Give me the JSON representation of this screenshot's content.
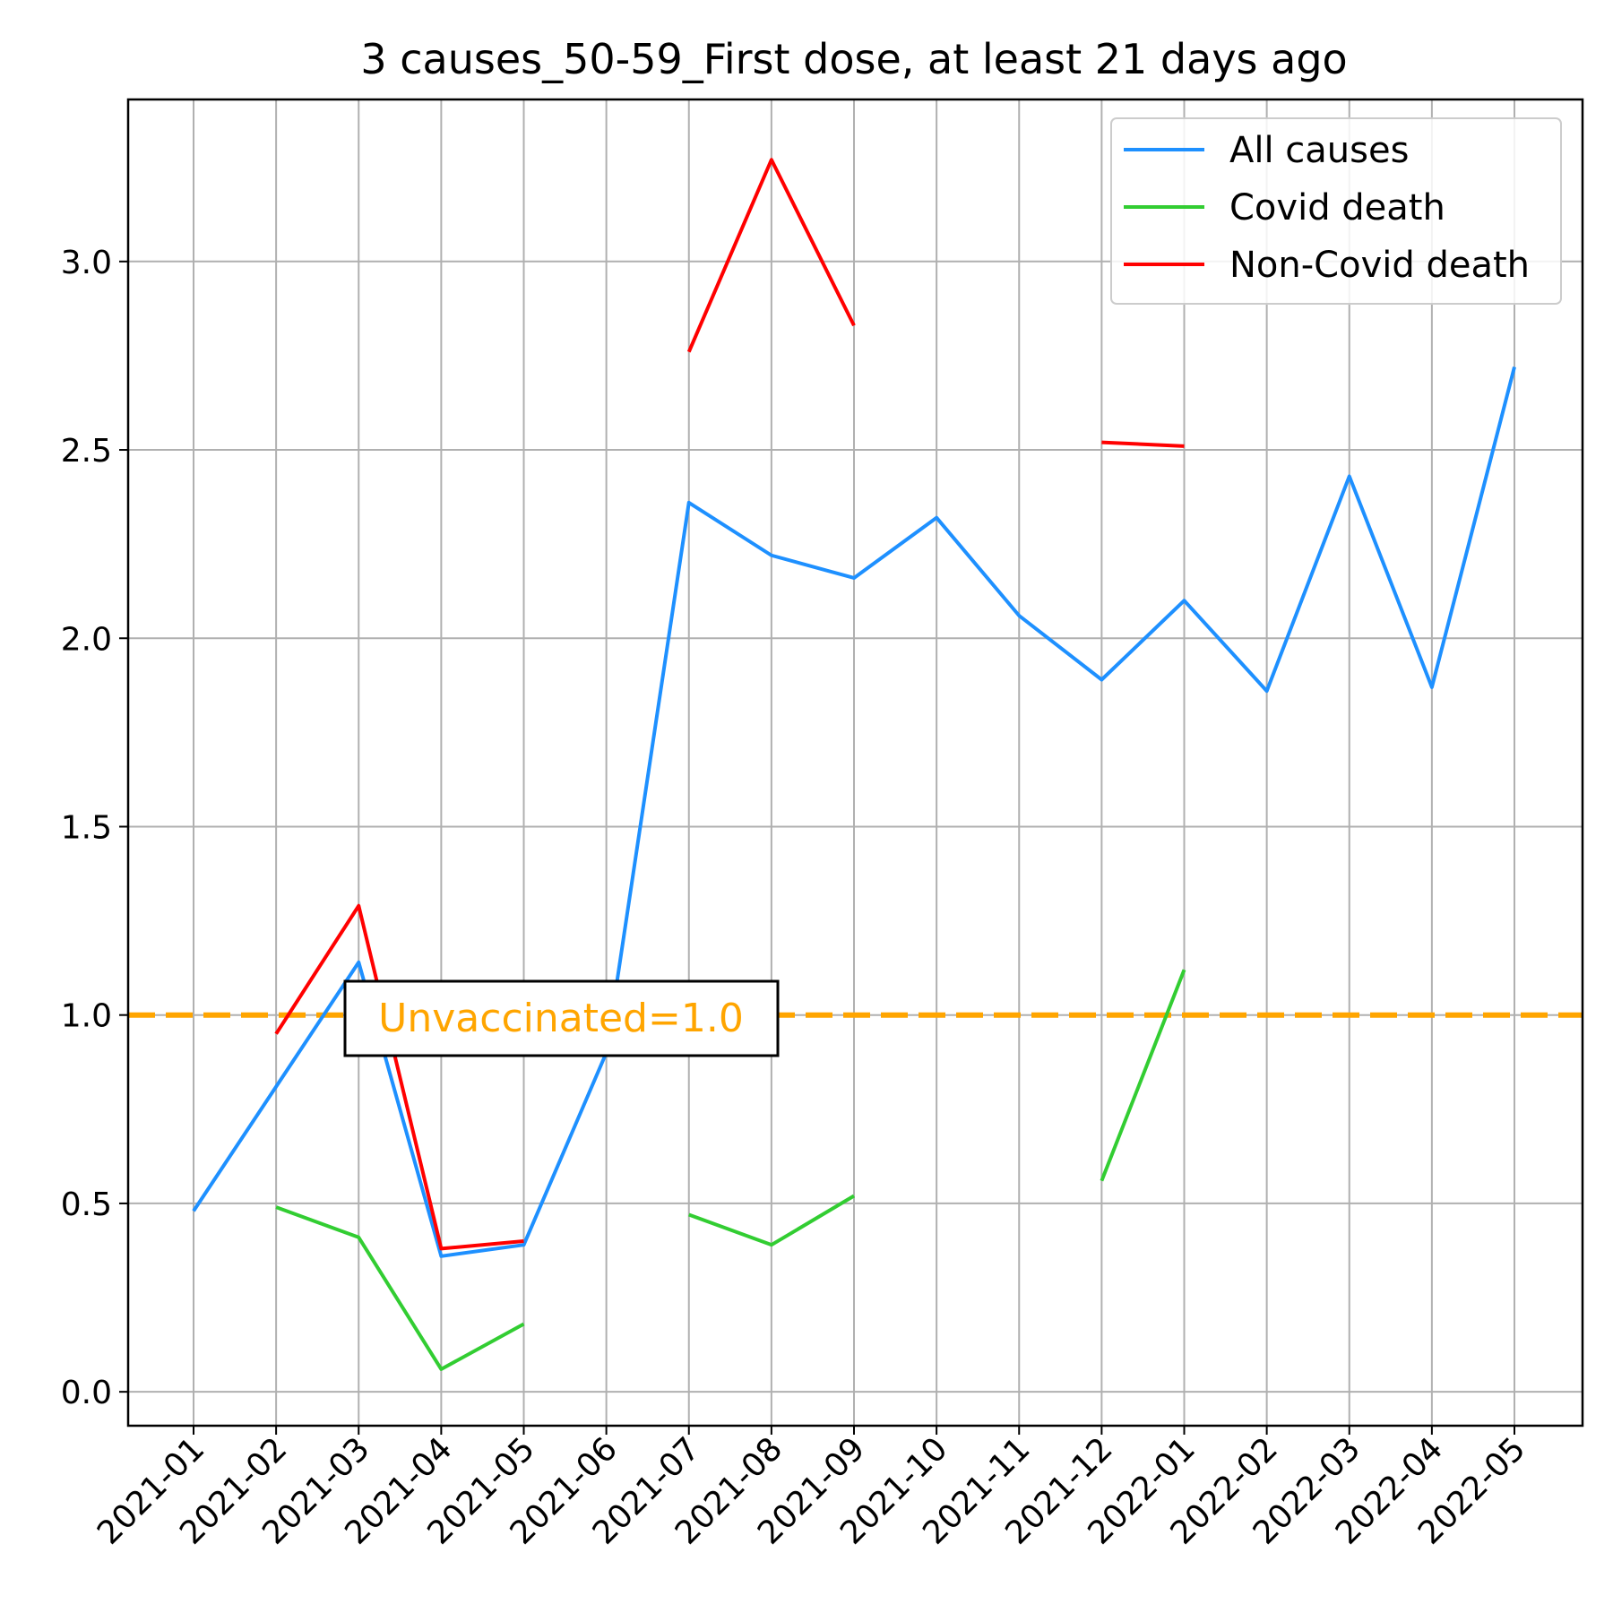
{
  "chart_data": {
    "type": "line",
    "title": "3 causes_50-59_First dose, at least 21 days ago",
    "xlabel": "",
    "ylabel": "",
    "x": [
      "2021-01",
      "2021-02",
      "2021-03",
      "2021-04",
      "2021-05",
      "2021-06",
      "2021-07",
      "2021-08",
      "2021-09",
      "2021-10",
      "2021-11",
      "2021-12",
      "2022-01",
      "2022-02",
      "2022-03",
      "2022-04",
      "2022-05"
    ],
    "yticks": [
      "0.0",
      "0.5",
      "1.0",
      "1.5",
      "2.0",
      "2.5",
      "3.0"
    ],
    "ylim": [
      -0.09,
      3.43
    ],
    "grid": true,
    "legend_position": "top-right",
    "series": [
      {
        "name": "All causes",
        "color": "#1e90ff",
        "values": [
          0.48,
          0.81,
          1.14,
          0.36,
          0.39,
          0.9,
          2.36,
          2.22,
          2.16,
          2.32,
          2.06,
          1.89,
          2.1,
          1.86,
          2.43,
          1.87,
          2.72
        ]
      },
      {
        "name": "Covid death",
        "color": "#32cd32",
        "values": [
          null,
          0.49,
          0.41,
          0.06,
          0.18,
          null,
          0.47,
          0.39,
          0.52,
          null,
          null,
          0.56,
          1.12,
          null,
          null,
          null,
          null
        ]
      },
      {
        "name": "Non-Covid death",
        "color": "#ff0000",
        "values": [
          null,
          0.95,
          1.29,
          0.38,
          0.4,
          null,
          2.76,
          3.27,
          2.83,
          null,
          null,
          2.52,
          2.51,
          null,
          null,
          null,
          null
        ]
      }
    ],
    "reference_line": {
      "value": 1.0,
      "color": "#ffa500"
    },
    "annotation": {
      "text": "Unvaccinated=1.0",
      "color": "#ffa500"
    }
  }
}
